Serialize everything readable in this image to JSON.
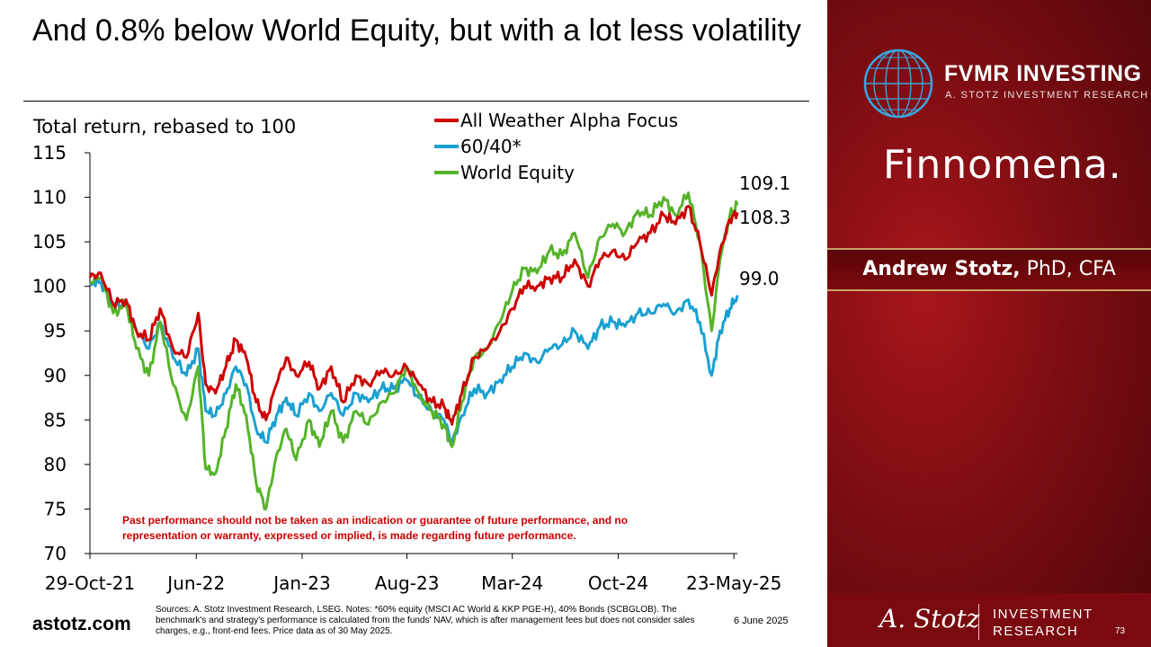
{
  "title": "And 0.8% below World Equity, but with a lot less volatility",
  "disclaimer": "Past performance should not be taken as an indication or guarantee of future performance, and no representation or warranty, expressed or implied, is made regarding future performance.",
  "footer": {
    "site": "astotz.com",
    "sources": "Sources: A. Stotz Investment Research, LSEG. Notes: *60% equity (MSCI AC World & KKP PGE-H), 40% Bonds (SCBGLOB). The benchmark's and strategy's performance is calculated from the funds' NAV, which is after management fees but does not consider sales charges, e.g., front-end fees. Price data as of 30 May 2025.",
    "date": "6 June 2025",
    "page": "73"
  },
  "sidebar": {
    "brand_name": "FVMR INVESTING",
    "brand_sub": "A. STOTZ INVESTMENT RESEARCH",
    "partner": "Finnomena.",
    "author_name": "Andrew Stotz,",
    "author_cred": " PhD, CFA",
    "signature": "A. Stotz",
    "ir_line1": "INVESTMENT",
    "ir_line2": "RESEARCH"
  },
  "colors": {
    "all_weather": "#cc0000",
    "sixty_forty": "#1aa0d0",
    "world_equity": "#55b32a",
    "sidebar": "#7d0d12",
    "gold": "#c9a463"
  },
  "chart_data": {
    "type": "line",
    "title": "",
    "ylabel": "Total return, rebased to 100",
    "ylim": [
      70,
      115
    ],
    "yticks": [
      70,
      75,
      80,
      85,
      90,
      95,
      100,
      105,
      110,
      115
    ],
    "x_tick_labels": [
      "29-Oct-21",
      "Jun-22",
      "Jan-23",
      "Aug-23",
      "Mar-24",
      "Oct-24",
      "23-May-25"
    ],
    "x_tick_dates": [
      "2021-10-29",
      "2022-06-01",
      "2023-01-01",
      "2023-08-01",
      "2024-03-01",
      "2024-10-01",
      "2025-05-23"
    ],
    "xlim": [
      "2021-10-29",
      "2025-05-30"
    ],
    "legend": "top-center",
    "grid": false,
    "series": [
      {
        "name": "All Weather Alpha Focus",
        "end_label": "108.3",
        "x": [
          "2021-10-29",
          "2021-11-20",
          "2021-12-15",
          "2022-01-10",
          "2022-01-31",
          "2022-02-25",
          "2022-03-20",
          "2022-04-15",
          "2022-05-12",
          "2022-06-05",
          "2022-06-20",
          "2022-07-10",
          "2022-07-31",
          "2022-08-20",
          "2022-09-10",
          "2022-09-30",
          "2022-10-20",
          "2022-11-10",
          "2022-11-30",
          "2022-12-20",
          "2023-01-15",
          "2023-02-05",
          "2023-03-01",
          "2023-03-25",
          "2023-04-20",
          "2023-05-15",
          "2023-06-10",
          "2023-07-05",
          "2023-07-31",
          "2023-08-25",
          "2023-09-20",
          "2023-10-15",
          "2023-10-31",
          "2023-11-20",
          "2023-12-15",
          "2024-01-10",
          "2024-02-05",
          "2024-03-01",
          "2024-03-25",
          "2024-04-20",
          "2024-05-15",
          "2024-06-10",
          "2024-07-05",
          "2024-08-01",
          "2024-08-25",
          "2024-09-20",
          "2024-10-15",
          "2024-11-10",
          "2024-12-05",
          "2025-01-01",
          "2025-01-25",
          "2025-02-20",
          "2025-03-15",
          "2025-04-08",
          "2025-04-25",
          "2025-05-15",
          "2025-05-30"
        ],
        "y": [
          101,
          101.5,
          98,
          98.5,
          95,
          94,
          97.5,
          93,
          92,
          97,
          89,
          88,
          91,
          94,
          92,
          87,
          85,
          89,
          92,
          90,
          91.5,
          88.5,
          91,
          87,
          90,
          89,
          90.5,
          90,
          91,
          89,
          87,
          86.5,
          84.5,
          88,
          92,
          93,
          95,
          97.5,
          100,
          100,
          101,
          101,
          103,
          100,
          103,
          104,
          103,
          105,
          106,
          108,
          107,
          109,
          105,
          99,
          104,
          107.5,
          108.3
        ]
      },
      {
        "name": "60/40*",
        "end_label": "99.0",
        "x": [
          "2021-10-29",
          "2021-11-20",
          "2021-12-15",
          "2022-01-10",
          "2022-01-31",
          "2022-02-25",
          "2022-03-20",
          "2022-04-15",
          "2022-05-12",
          "2022-06-05",
          "2022-06-20",
          "2022-07-10",
          "2022-07-31",
          "2022-08-20",
          "2022-09-10",
          "2022-09-30",
          "2022-10-20",
          "2022-11-10",
          "2022-11-30",
          "2022-12-20",
          "2023-01-15",
          "2023-02-05",
          "2023-03-01",
          "2023-03-25",
          "2023-04-20",
          "2023-05-15",
          "2023-06-10",
          "2023-07-05",
          "2023-07-31",
          "2023-08-25",
          "2023-09-20",
          "2023-10-15",
          "2023-10-31",
          "2023-11-20",
          "2023-12-15",
          "2024-01-10",
          "2024-02-05",
          "2024-03-01",
          "2024-03-25",
          "2024-04-20",
          "2024-05-15",
          "2024-06-10",
          "2024-07-05",
          "2024-08-01",
          "2024-08-25",
          "2024-09-20",
          "2024-10-15",
          "2024-11-10",
          "2024-12-05",
          "2025-01-01",
          "2025-01-25",
          "2025-02-20",
          "2025-03-15",
          "2025-04-08",
          "2025-04-25",
          "2025-05-15",
          "2025-05-30"
        ],
        "y": [
          100.5,
          100.5,
          98,
          98,
          95,
          93,
          96,
          92,
          90,
          93,
          86,
          85.5,
          88,
          91,
          89,
          84,
          82.5,
          85.5,
          87.5,
          85.5,
          88,
          86,
          88,
          85.5,
          88,
          87,
          88.5,
          88.5,
          89.5,
          87.5,
          86,
          85,
          82.5,
          85.5,
          88.5,
          88,
          89.5,
          91,
          92.5,
          91.5,
          93,
          93.5,
          95,
          93,
          95.5,
          96,
          95.5,
          97,
          97,
          98,
          97,
          98.5,
          96,
          90,
          95,
          97.5,
          99
        ]
      },
      {
        "name": "World Equity",
        "end_label": "109.1",
        "x": [
          "2021-10-29",
          "2021-11-20",
          "2021-12-15",
          "2022-01-10",
          "2022-01-31",
          "2022-02-25",
          "2022-03-20",
          "2022-04-15",
          "2022-05-12",
          "2022-06-05",
          "2022-06-20",
          "2022-07-10",
          "2022-07-31",
          "2022-08-20",
          "2022-09-10",
          "2022-09-30",
          "2022-10-20",
          "2022-11-10",
          "2022-11-30",
          "2022-12-20",
          "2023-01-15",
          "2023-02-05",
          "2023-03-01",
          "2023-03-25",
          "2023-04-20",
          "2023-05-15",
          "2023-06-10",
          "2023-07-05",
          "2023-07-31",
          "2023-08-25",
          "2023-09-20",
          "2023-10-15",
          "2023-10-31",
          "2023-11-20",
          "2023-12-15",
          "2024-01-10",
          "2024-02-05",
          "2024-03-01",
          "2024-03-25",
          "2024-04-20",
          "2024-05-15",
          "2024-06-10",
          "2024-07-05",
          "2024-08-01",
          "2024-08-25",
          "2024-09-20",
          "2024-10-15",
          "2024-11-10",
          "2024-12-05",
          "2025-01-01",
          "2025-01-25",
          "2025-02-20",
          "2025-03-15",
          "2025-04-08",
          "2025-04-25",
          "2025-05-15",
          "2025-05-30"
        ],
        "y": [
          100.5,
          101,
          97,
          98,
          93,
          90,
          96,
          89,
          85,
          91,
          79.5,
          79,
          84,
          89,
          85.5,
          78,
          75,
          81,
          84,
          80.5,
          85,
          82,
          86,
          82.5,
          86,
          84.5,
          87,
          88,
          91,
          88,
          86,
          84.5,
          82,
          87,
          92,
          93,
          96,
          99.5,
          102,
          101.5,
          104,
          103.5,
          106,
          101,
          105.5,
          107,
          106,
          108.5,
          108,
          110,
          108,
          110.5,
          105,
          95,
          103,
          108,
          109.1
        ]
      }
    ]
  }
}
